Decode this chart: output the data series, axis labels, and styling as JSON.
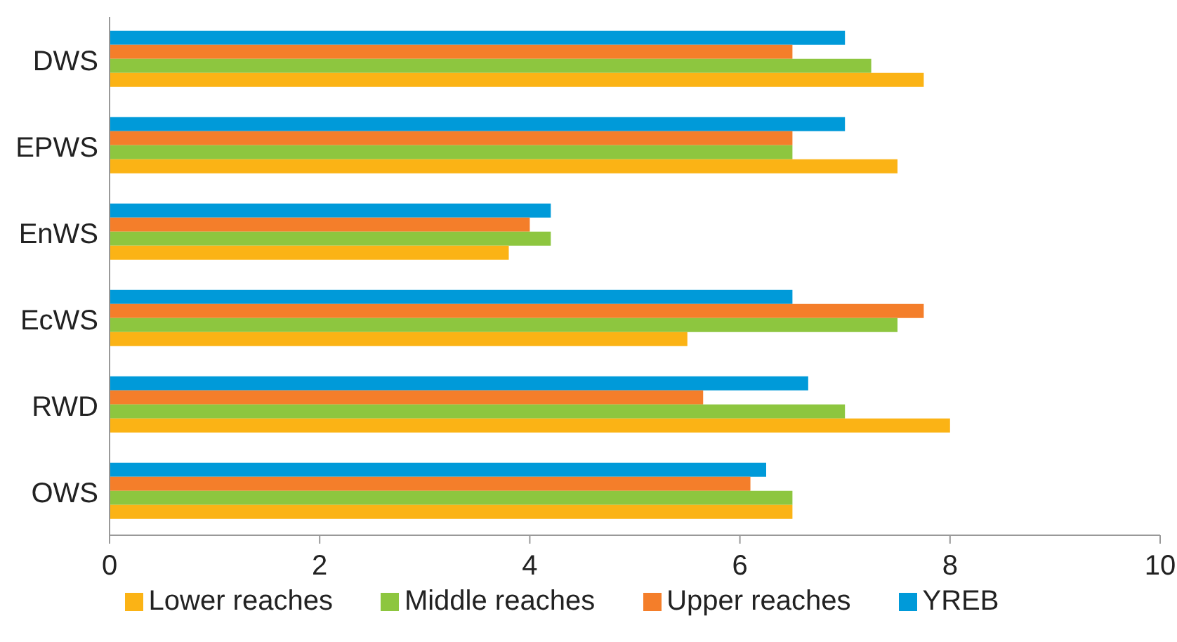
{
  "chart_data": {
    "type": "bar",
    "orientation": "horizontal",
    "categories": [
      "DWS",
      "EPWS",
      "EnWS",
      "EcWS",
      "RWD",
      "OWS"
    ],
    "series": [
      {
        "name": "YREB",
        "color": "#009ad9",
        "values": [
          7.0,
          7.0,
          4.2,
          6.5,
          6.65,
          6.25
        ]
      },
      {
        "name": "Upper reaches",
        "color": "#f47e2a",
        "values": [
          6.5,
          6.5,
          4.0,
          7.75,
          5.65,
          6.1
        ]
      },
      {
        "name": "Middle reaches",
        "color": "#8dc63f",
        "values": [
          7.25,
          6.5,
          4.2,
          7.5,
          7.0,
          6.5
        ]
      },
      {
        "name": "Lower reaches",
        "color": "#fbb315",
        "values": [
          7.75,
          7.5,
          3.8,
          5.5,
          8.0,
          6.5
        ]
      }
    ],
    "xlim": [
      0,
      10
    ],
    "xticks": [
      0,
      2,
      4,
      6,
      8,
      10
    ],
    "grid": false,
    "legend": "bottom"
  }
}
